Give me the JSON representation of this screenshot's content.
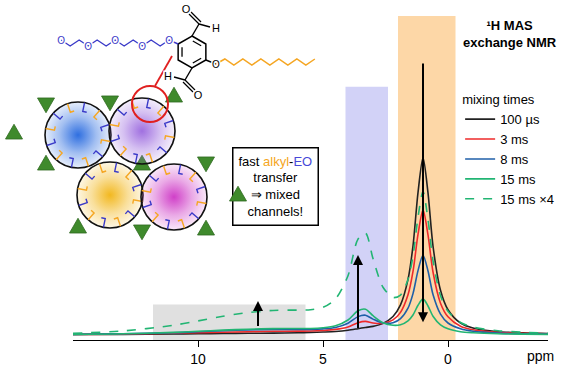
{
  "chart_data": {
    "type": "line",
    "title": [
      "¹H MAS",
      "exchange NMR"
    ],
    "x_label": "ppm",
    "x": [
      15,
      13,
      11,
      10,
      9,
      8,
      7,
      6,
      5.5,
      5,
      4.5,
      4,
      3.6,
      3.3,
      3,
      2.6,
      2.2,
      1.9,
      1.6,
      1.4,
      1.2,
      1.0,
      0.8,
      0.6,
      0.3,
      0,
      -0.5,
      -1,
      -2,
      -3,
      -4
    ],
    "series": [
      {
        "name": "100 µs",
        "color": "#222222",
        "line_style": "solid",
        "values": [
          0.1,
          0.2,
          0.4,
          0.5,
          0.7,
          0.8,
          0.9,
          1.1,
          1.3,
          1.5,
          1.8,
          2.5,
          3.4,
          4.1,
          4.7,
          6.4,
          10.3,
          16.8,
          31.2,
          50.2,
          80.2,
          100,
          80.1,
          50.1,
          25.1,
          14.1,
          6.6,
          3.8,
          1.7,
          1.0,
          0.6
        ]
      },
      {
        "name": "3 ms",
        "color": "#ee2a2a",
        "line_style": "solid",
        "values": [
          0.2,
          0.3,
          0.8,
          1.1,
          1.4,
          1.7,
          1.9,
          2.0,
          2.1,
          2.4,
          3.0,
          4.4,
          6.8,
          7.5,
          6.6,
          6.4,
          8.4,
          12.6,
          22.5,
          35.7,
          56.6,
          70.5,
          56.4,
          35.4,
          17.8,
          10.1,
          4.8,
          2.8,
          1.3,
          0.8,
          0.5
        ]
      },
      {
        "name": "8 ms",
        "color": "#1f5fa8",
        "line_style": "solid",
        "values": [
          0.2,
          0.5,
          1.1,
          1.7,
          2.2,
          2.7,
          2.9,
          3.0,
          3.0,
          3.3,
          4.1,
          6.5,
          10.2,
          11.0,
          8.8,
          6.6,
          6.8,
          9.1,
          15.0,
          23.2,
          36.2,
          44.9,
          36.0,
          22.7,
          11.6,
          6.6,
          3.3,
          1.9,
          0.9,
          0.5,
          0.3
        ]
      },
      {
        "name": "15 ms",
        "color": "#22b573",
        "line_style": "solid",
        "values": [
          0.2,
          0.5,
          1.3,
          1.9,
          2.6,
          3.1,
          3.4,
          3.5,
          3.5,
          3.9,
          5.0,
          8.3,
          13.5,
          14.4,
          10.7,
          6.7,
          5.3,
          5.6,
          7.8,
          11.1,
          16.6,
          20.2,
          16.2,
          10.4,
          5.5,
          3.3,
          1.7,
          1.1,
          0.5,
          0.3,
          0.2
        ]
      },
      {
        "name": "15 ms ×4",
        "color": "#22b573",
        "line_style": "dash",
        "values": [
          0.8,
          2.1,
          5.3,
          7.8,
          10.4,
          12.5,
          13.7,
          13.9,
          14.1,
          15.4,
          20.2,
          33.3,
          54.0,
          57.4,
          43.0,
          26.8,
          21.0,
          22.4,
          31.2,
          44.5,
          66.3,
          80.9,
          65.0,
          41.7,
          22.1,
          13.2,
          6.9,
          4.3,
          2.2,
          1.4,
          0.8
        ]
      }
    ],
    "xlim": [
      15,
      -4
    ],
    "xticks": [
      10,
      5,
      0
    ],
    "ylim": [
      -3,
      180
    ],
    "grid": false,
    "tick_labels": "x",
    "legend": "right",
    "legend_title": "mixing times",
    "regions": [
      {
        "x": [
          11.8,
          5.7
        ],
        "y": [
          -3,
          17
        ],
        "color": "#d6d6d6"
      },
      {
        "x": [
          4.1,
          2.4
        ],
        "y": [
          -3,
          140
        ],
        "color": "#c3c3f4"
      },
      {
        "x": [
          2.0,
          -0.3
        ],
        "y": [
          -3,
          180
        ],
        "color": "#fcc98a"
      }
    ],
    "arrows": [
      {
        "x": 7.6,
        "from": 4,
        "to": 19
      },
      {
        "x": 3.6,
        "from": 3,
        "to": 45
      },
      {
        "x": 1.0,
        "from": 154,
        "to": 7
      }
    ],
    "box_text": [
      [
        {
          "text": "fast "
        },
        {
          "text": "alkyl",
          "color": "#f5a623"
        },
        {
          "text": "-"
        },
        {
          "text": "EO",
          "color": "#4848d8"
        }
      ],
      [
        {
          "text": "transfer"
        }
      ],
      [
        {
          "text": "⇒ mixed"
        }
      ],
      [
        {
          "text": "channels!"
        }
      ]
    ],
    "schematic": {
      "aldehyde_labels": [
        "O",
        "H"
      ],
      "ether_label": "O"
    }
  }
}
